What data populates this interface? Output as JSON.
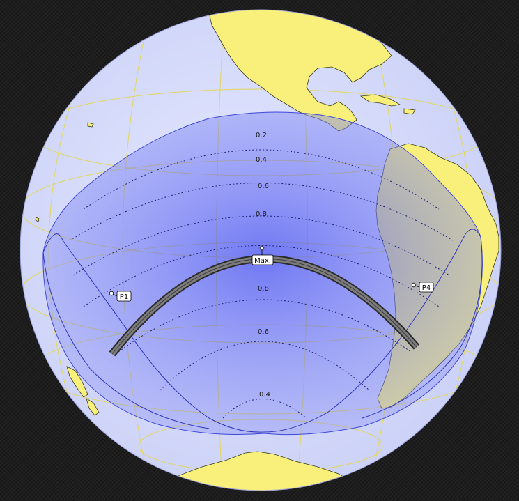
{
  "map": {
    "land_color": "#f8f07a",
    "ocean_color": "#d7dcfb",
    "graticule_color": "#e3d75a",
    "penumbra_color": "#5a63f2",
    "path_color": "#5a5a5a"
  },
  "magnitude_labels": {
    "north_02": "0.2",
    "north_04": "0.4",
    "north_06": "0.6",
    "north_08": "0.8",
    "south_08": "0.8",
    "south_06": "0.6",
    "south_04": "0.4"
  },
  "contact_points": {
    "p1": "P1",
    "p4": "P4",
    "max": "Max."
  }
}
